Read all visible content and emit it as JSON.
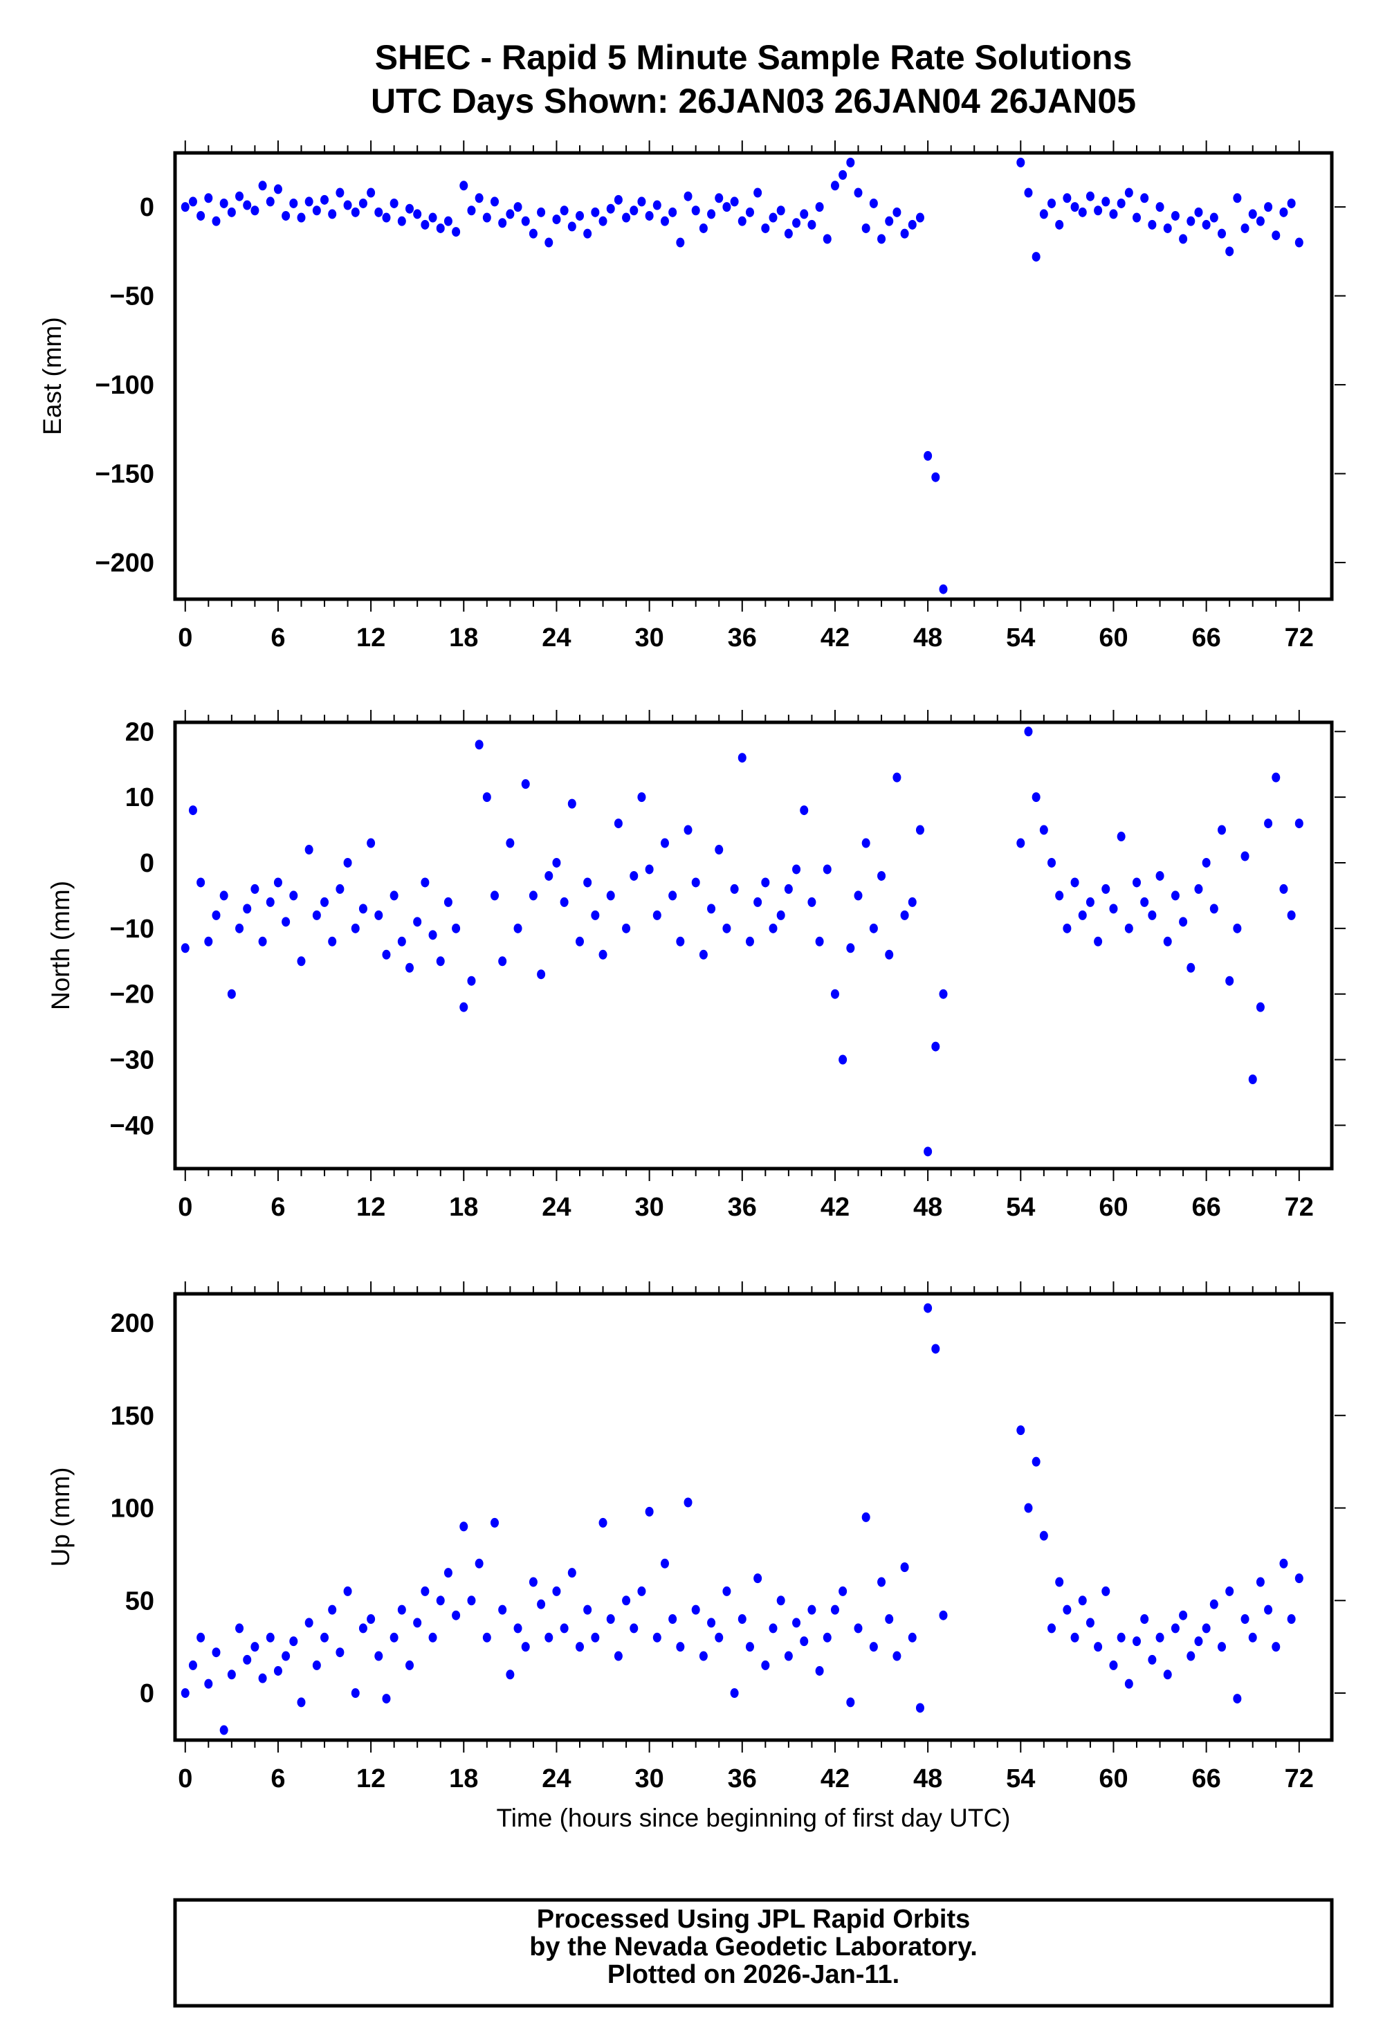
{
  "title": {
    "line1": "SHEC - Rapid 5 Minute Sample Rate Solutions",
    "line2": "UTC Days Shown:  26JAN03 26JAN04 26JAN05"
  },
  "footer": {
    "line1": "Processed Using JPL Rapid Orbits",
    "line2": "by the Nevada Geodetic Laboratory.",
    "line3": "Plotted on 2026-Jan-11."
  },
  "colors": {
    "points": "#0000ff",
    "axes": "#000000"
  },
  "chart_data": [
    {
      "type": "scatter",
      "name": "east",
      "ylabel": "East (mm)",
      "xlabel": "",
      "xlim": [
        -0.75,
        74.2
      ],
      "ylim": [
        -220.6,
        30.4
      ],
      "xticks": [
        0,
        6,
        12,
        18,
        24,
        30,
        36,
        42,
        48,
        54,
        60,
        66,
        72
      ],
      "yticks": [
        -200,
        -150,
        -100,
        -50,
        0
      ],
      "x_start": 0,
      "x_step": 0.5,
      "values": [
        0,
        3,
        -5,
        5,
        -8,
        2,
        -3,
        6,
        1,
        -2,
        12,
        3,
        10,
        -5,
        2,
        -6,
        3,
        -2,
        4,
        -4,
        8,
        1,
        -3,
        2,
        8,
        -3,
        -6,
        2,
        -8,
        -1,
        -4,
        -10,
        -6,
        -12,
        -8,
        -14,
        12,
        -2,
        5,
        -6,
        3,
        -9,
        -4,
        0,
        -8,
        -15,
        -3,
        -20,
        -7,
        -2,
        -11,
        -5,
        -15,
        -3,
        -8,
        -1,
        4,
        -6,
        -2,
        3,
        -5,
        1,
        -8,
        -3,
        -20,
        6,
        -2,
        -12,
        -4,
        5,
        0,
        3,
        -8,
        -3,
        8,
        -12,
        -6,
        -2,
        -15,
        -9,
        -4,
        -10,
        0,
        -18,
        12,
        18,
        25,
        8,
        -12,
        2,
        -18,
        -8,
        -3,
        -15,
        -10,
        -6,
        -140,
        -152,
        -215,
        null,
        null,
        null,
        null,
        null,
        null,
        null,
        null,
        null,
        25,
        8,
        -28,
        -4,
        2,
        -10,
        5,
        0,
        -3,
        6,
        -2,
        3,
        -4,
        2,
        8,
        -6,
        5,
        -10,
        0,
        -12,
        -5,
        -18,
        -8,
        -3,
        -10,
        -6,
        -15,
        -25,
        5,
        -12,
        -4,
        -8,
        0,
        -16,
        -3,
        2,
        -20
      ]
    },
    {
      "type": "scatter",
      "name": "north",
      "ylabel": "North (mm)",
      "xlabel": "",
      "xlim": [
        -0.75,
        74.2
      ],
      "ylim": [
        -46.6,
        21.4
      ],
      "xticks": [
        0,
        6,
        12,
        18,
        24,
        30,
        36,
        42,
        48,
        54,
        60,
        66,
        72
      ],
      "yticks": [
        -40,
        -30,
        -20,
        -10,
        0,
        10,
        20
      ],
      "x_start": 0,
      "x_step": 0.5,
      "values": [
        -13,
        8,
        -3,
        -12,
        -8,
        -5,
        -20,
        -10,
        -7,
        -4,
        -12,
        -6,
        -3,
        -9,
        -5,
        -15,
        2,
        -8,
        -6,
        -12,
        -4,
        0,
        -10,
        -7,
        3,
        -8,
        -14,
        -5,
        -12,
        -16,
        -9,
        -3,
        -11,
        -15,
        -6,
        -10,
        -22,
        -18,
        18,
        10,
        -5,
        -15,
        3,
        -10,
        12,
        -5,
        -17,
        -2,
        0,
        -6,
        9,
        -12,
        -3,
        -8,
        -14,
        -5,
        6,
        -10,
        -2,
        10,
        -1,
        -8,
        3,
        -5,
        -12,
        5,
        -3,
        -14,
        -7,
        2,
        -10,
        -4,
        16,
        -12,
        -6,
        -3,
        -10,
        -8,
        -4,
        -1,
        8,
        -6,
        -12,
        -1,
        -20,
        -30,
        -13,
        -5,
        3,
        -10,
        -2,
        -14,
        13,
        -8,
        -6,
        5,
        -44,
        -28,
        -20,
        null,
        null,
        null,
        null,
        null,
        null,
        null,
        null,
        null,
        3,
        20,
        10,
        5,
        0,
        -5,
        -10,
        -3,
        -8,
        -6,
        -12,
        -4,
        -7,
        4,
        -10,
        -3,
        -6,
        -8,
        -2,
        -12,
        -5,
        -9,
        -16,
        -4,
        0,
        -7,
        5,
        -18,
        -10,
        1,
        -33,
        -22,
        6,
        13,
        -4,
        -8,
        6
      ]
    },
    {
      "type": "scatter",
      "name": "up",
      "ylabel": "Up (mm)",
      "xlabel": "Time (hours since beginning of first day UTC)",
      "xlim": [
        -0.75,
        74.2
      ],
      "ylim": [
        -25.4,
        215.7
      ],
      "xticks": [
        0,
        6,
        12,
        18,
        24,
        30,
        36,
        42,
        48,
        54,
        60,
        66,
        72
      ],
      "yticks": [
        0,
        50,
        100,
        150,
        200
      ],
      "x_start": 0,
      "x_step": 0.5,
      "values": [
        0,
        15,
        30,
        5,
        22,
        -20,
        10,
        35,
        18,
        25,
        8,
        30,
        12,
        20,
        28,
        -5,
        38,
        15,
        30,
        45,
        22,
        55,
        0,
        35,
        40,
        20,
        -3,
        30,
        45,
        15,
        38,
        55,
        30,
        50,
        65,
        42,
        90,
        50,
        70,
        30,
        92,
        45,
        10,
        35,
        25,
        60,
        48,
        30,
        55,
        35,
        65,
        25,
        45,
        30,
        92,
        40,
        20,
        50,
        35,
        55,
        98,
        30,
        70,
        40,
        25,
        103,
        45,
        20,
        38,
        30,
        55,
        0,
        40,
        25,
        62,
        15,
        35,
        50,
        20,
        38,
        28,
        45,
        12,
        30,
        45,
        55,
        -5,
        35,
        95,
        25,
        60,
        40,
        20,
        68,
        30,
        -8,
        208,
        186,
        42,
        null,
        null,
        null,
        null,
        null,
        null,
        null,
        null,
        null,
        142,
        100,
        125,
        85,
        35,
        60,
        45,
        30,
        50,
        38,
        25,
        55,
        15,
        30,
        5,
        28,
        40,
        18,
        30,
        10,
        35,
        42,
        20,
        28,
        35,
        48,
        25,
        55,
        -3,
        40,
        30,
        60,
        45,
        25,
        70,
        40,
        62
      ]
    }
  ]
}
